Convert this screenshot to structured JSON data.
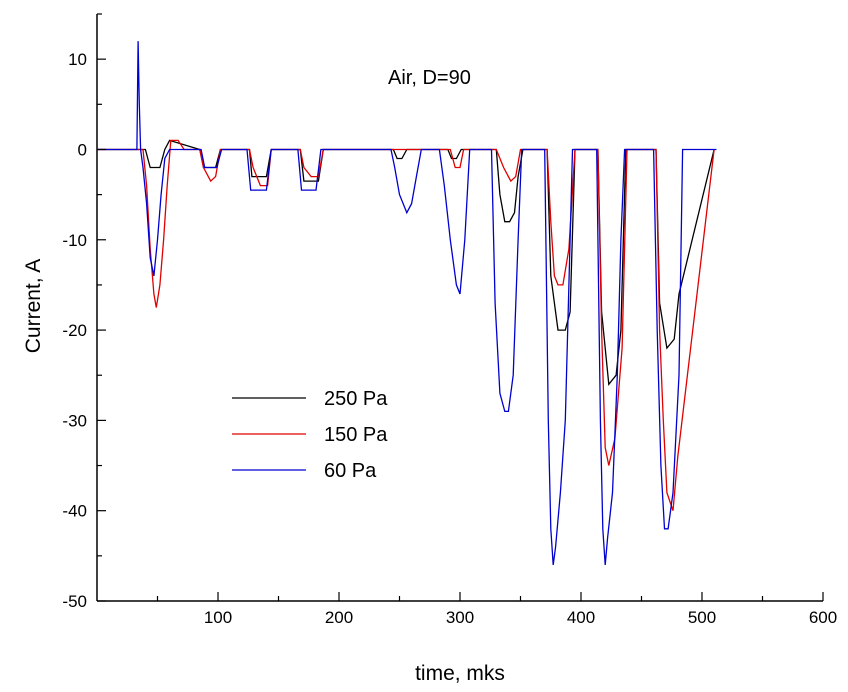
{
  "chart_data": {
    "type": "line",
    "title": "",
    "annotation": "Air, D=90",
    "xlabel": "time, mks",
    "ylabel": "Current, A",
    "xlim": [
      0,
      600
    ],
    "ylim": [
      -50,
      15
    ],
    "x_ticks": [
      100,
      200,
      300,
      400,
      500,
      600
    ],
    "x_tick_labels": [
      "100",
      "200",
      "300",
      "400",
      "500",
      "600"
    ],
    "y_ticks": [
      10,
      0,
      -10,
      -20,
      -30,
      -40,
      -50
    ],
    "y_tick_labels": [
      "10",
      "0",
      "-10",
      "-20",
      "-30",
      "-40",
      "-50"
    ],
    "grid": false,
    "legend_position": "center-left",
    "series": [
      {
        "name": "250 Pa",
        "color": "#000000",
        "x": [
          0,
          40,
          44,
          48,
          52,
          56,
          60,
          85,
          88,
          94,
          98,
          102,
          126,
          128,
          134,
          140,
          144,
          168,
          171,
          177,
          183,
          187,
          245,
          248,
          252,
          256,
          290,
          293,
          297,
          301,
          330,
          333,
          337,
          341,
          345,
          348,
          352,
          372,
          375,
          381,
          387,
          391,
          395,
          414,
          417,
          423,
          429,
          433,
          437,
          462,
          465,
          471,
          477,
          481,
          510
        ],
        "y": [
          0,
          0,
          -2,
          -2,
          -2,
          0,
          1,
          0,
          -2,
          -2,
          -2,
          0,
          0,
          -3,
          -3,
          -3,
          0,
          0,
          -3.5,
          -3.5,
          -3.5,
          0,
          0,
          -1,
          -1,
          0,
          0,
          -1,
          -1,
          0,
          0,
          -5,
          -8,
          -8,
          -7,
          -3,
          0,
          0,
          -14,
          -20,
          -20,
          -18,
          0,
          0,
          -18,
          -26,
          -25,
          -20,
          0,
          0,
          -17,
          -22,
          -21,
          -16,
          0
        ]
      },
      {
        "name": "150 Pa",
        "color": "#e00000",
        "x": [
          0,
          38,
          41,
          44,
          47,
          49,
          52,
          55,
          58,
          61,
          64,
          67,
          72,
          85,
          88,
          94,
          98,
          102,
          126,
          129,
          135,
          141,
          144,
          168,
          171,
          177,
          183,
          187,
          250,
          292,
          296,
          300,
          303,
          330,
          336,
          342,
          346,
          350,
          372,
          375,
          378,
          381,
          385,
          390,
          395,
          414,
          417,
          420,
          423,
          428,
          434,
          438,
          462,
          465,
          468,
          471,
          476,
          480,
          510
        ],
        "y": [
          0,
          0,
          -4,
          -11,
          -16,
          -17.5,
          -15,
          -10,
          -4,
          1,
          1,
          1,
          0,
          0,
          -2,
          -3.5,
          -3,
          0,
          0,
          -2,
          -4,
          -4,
          0,
          0,
          -2,
          -3,
          -3,
          0,
          0,
          0,
          -2,
          -2,
          0,
          0,
          -2,
          -3.5,
          -3,
          0,
          0,
          -8,
          -14,
          -15,
          -15,
          -11,
          0,
          0,
          -20,
          -33,
          -35,
          -32,
          -22,
          0,
          0,
          -20,
          -30,
          -38,
          -40,
          -34,
          0
        ]
      },
      {
        "name": "60 Pa",
        "color": "#0000d0",
        "x": [
          0,
          33,
          34,
          35,
          36,
          38,
          41,
          44,
          47,
          50,
          53,
          56,
          60,
          86,
          89,
          95,
          99,
          103,
          124,
          127,
          133,
          140,
          144,
          166,
          169,
          175,
          181,
          185,
          243,
          246,
          250,
          256,
          260,
          264,
          268,
          283,
          287,
          292,
          297,
          300,
          304,
          308,
          326,
          329,
          333,
          337,
          340,
          344,
          348,
          351,
          370,
          373,
          375,
          377,
          379,
          383,
          387,
          390,
          393,
          413,
          416,
          418,
          420,
          422,
          426,
          430,
          433,
          436,
          460,
          463,
          466,
          469,
          472,
          476,
          481,
          484,
          512
        ],
        "y": [
          0,
          0,
          12,
          5,
          0,
          -2,
          -6,
          -12,
          -14,
          -10,
          -5,
          -1,
          0,
          0,
          -2,
          -2,
          -2,
          0,
          0,
          -4.5,
          -4.5,
          -4.5,
          0,
          0,
          -4.5,
          -4.5,
          -4.5,
          0,
          0,
          -2,
          -5,
          -7,
          -6,
          -3,
          0,
          0,
          -4,
          -10,
          -15,
          -16,
          -10,
          0,
          0,
          -17,
          -27,
          -29,
          -29,
          -25,
          -10,
          0,
          0,
          -30,
          -42,
          -46,
          -44,
          -38,
          -30,
          -15,
          0,
          0,
          -30,
          -42,
          -46,
          -43,
          -38,
          -25,
          -10,
          0,
          0,
          -20,
          -35,
          -42,
          -42,
          -38,
          -25,
          0,
          0
        ]
      }
    ]
  }
}
